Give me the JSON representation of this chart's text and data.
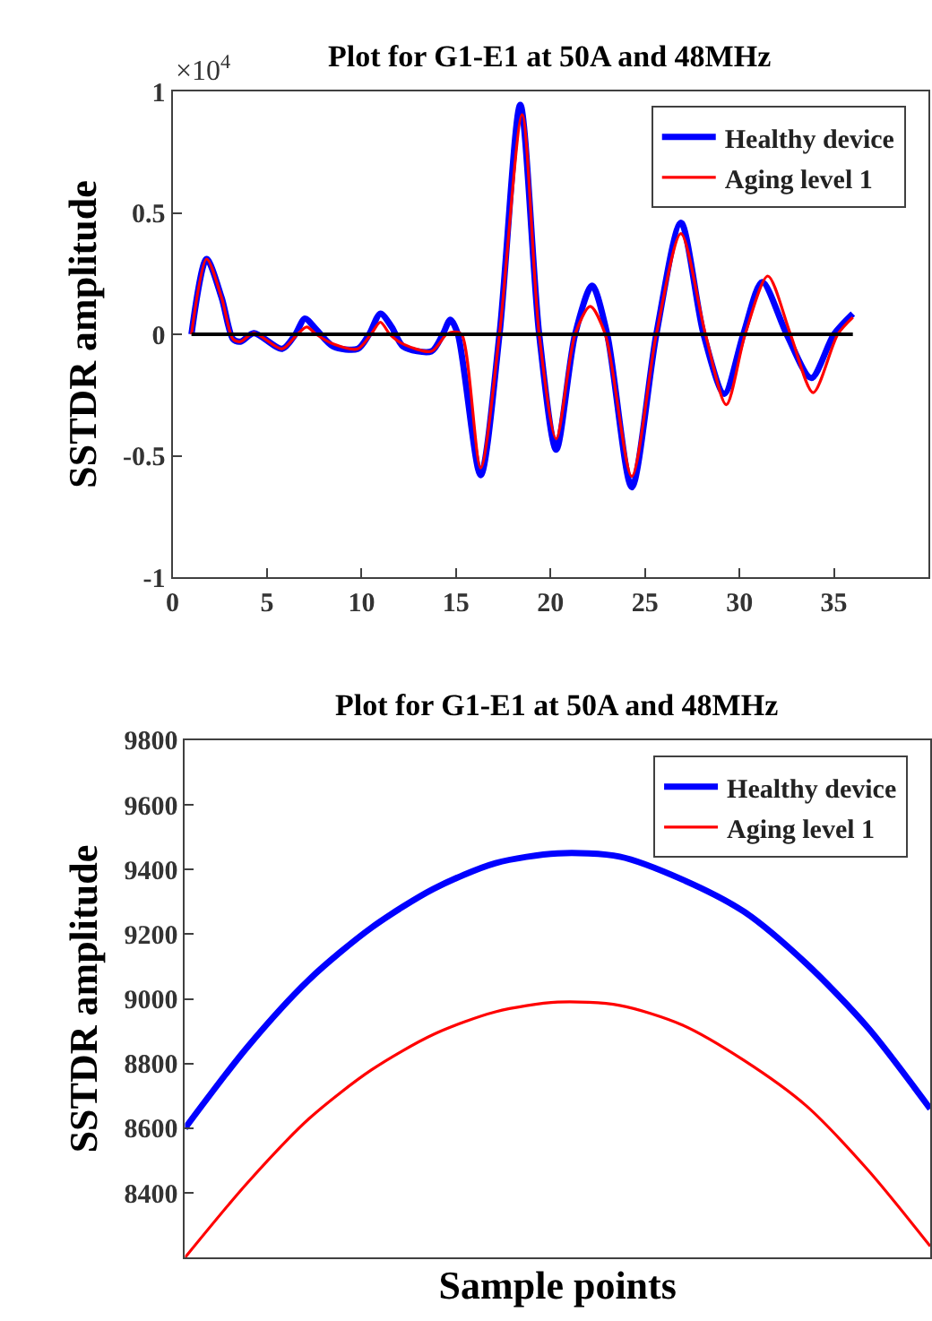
{
  "chart_data": [
    {
      "type": "line",
      "title": "Plot for G1-E1 at 50A and 48MHz",
      "ylabel": "SSTDR amplitude",
      "annotations": [
        "×10$^{4}$"
      ],
      "xlim": [
        0,
        40
      ],
      "xticks": [
        0,
        5,
        10,
        15,
        20,
        25,
        30,
        35
      ],
      "ylim": [
        -1,
        1
      ],
      "yticks": [
        -1,
        -0.5,
        0,
        0.5,
        1
      ],
      "legend": "top right",
      "marker": "none",
      "line_style": "solid",
      "ref_lines": [
        {
          "axis": "y",
          "value": 0,
          "color": "#000000"
        }
      ],
      "series": [
        {
          "name": "Healthy device",
          "color": "#0000ff",
          "x": [
            1,
            1.8,
            2.6,
            3.2,
            3.6,
            4.3,
            5.8,
            6.5,
            7,
            7.6,
            8.5,
            9.8,
            10.4,
            11,
            11.6,
            12.2,
            13.7,
            14.3,
            14.7,
            15.1,
            16.3,
            17.3,
            18.4,
            19.4,
            20.3,
            21.3,
            22.2,
            23.0,
            24.3,
            25.6,
            26.9,
            28.1,
            29.2,
            30.2,
            31.2,
            32.5,
            33.8,
            35.0,
            36
          ],
          "values": [
            0,
            0.31,
            0.15,
            -0.02,
            -0.03,
            0.005,
            -0.06,
            0.0,
            0.065,
            0.02,
            -0.05,
            -0.06,
            0.0,
            0.085,
            0.03,
            -0.05,
            -0.07,
            0.0,
            0.06,
            0.0,
            -0.58,
            0.0,
            0.945,
            0.0,
            -0.475,
            0.0,
            0.2,
            0.0,
            -0.63,
            0.0,
            0.46,
            0.0,
            -0.245,
            0.0,
            0.215,
            0.0,
            -0.18,
            0.0,
            0.085
          ]
        },
        {
          "name": "Aging level 1",
          "color": "#ff0000",
          "x": [
            1,
            1.8,
            2.6,
            3.2,
            3.6,
            4.3,
            5.8,
            6.6,
            7.1,
            7.6,
            8.5,
            9.8,
            10.5,
            11,
            11.5,
            12.2,
            13.7,
            14.5,
            14.9,
            15.3,
            16.3,
            17.3,
            18.5,
            19.4,
            20.3,
            21.3,
            22.1,
            22.9,
            24.3,
            25.6,
            26.9,
            28.2,
            29.3,
            30.3,
            31.5,
            32.7,
            33.9,
            35.2,
            36
          ],
          "values": [
            0,
            0.31,
            0.15,
            -0.02,
            -0.03,
            0.005,
            -0.06,
            0.0,
            0.03,
            0.0,
            -0.04,
            -0.06,
            0.0,
            0.05,
            0.0,
            -0.04,
            -0.07,
            0.0,
            0.01,
            0.0,
            -0.55,
            0.0,
            0.905,
            0.0,
            -0.43,
            0.0,
            0.115,
            0.0,
            -0.585,
            0.0,
            0.415,
            0.0,
            -0.29,
            0.0,
            0.24,
            0.0,
            -0.24,
            0.0,
            0.07
          ]
        }
      ]
    },
    {
      "type": "line",
      "title": "Plot for G1-E1 at 50A and 48MHz",
      "xlabel": "Sample points",
      "ylabel": "SSTDR amplitude",
      "categories": [
        null,
        null,
        null,
        null,
        null,
        null,
        null,
        null,
        null,
        null,
        null,
        null,
        null
      ],
      "ylim": [
        8200,
        9800
      ],
      "yticks": [
        8400,
        8600,
        8800,
        9000,
        9200,
        9400,
        9600,
        9800
      ],
      "legend": "top right",
      "marker": "none",
      "line_style": "solid",
      "series": [
        {
          "name": "Healthy device",
          "color": "#0000ff",
          "values": [
            8600,
            8850,
            9060,
            9220,
            9340,
            9420,
            9450,
            9440,
            9370,
            9270,
            9110,
            8910,
            8660
          ]
        },
        {
          "name": "Aging level 1",
          "color": "#ff0000",
          "values": [
            8200,
            8430,
            8630,
            8780,
            8890,
            8960,
            8990,
            8980,
            8920,
            8810,
            8670,
            8470,
            8235
          ]
        }
      ]
    }
  ]
}
